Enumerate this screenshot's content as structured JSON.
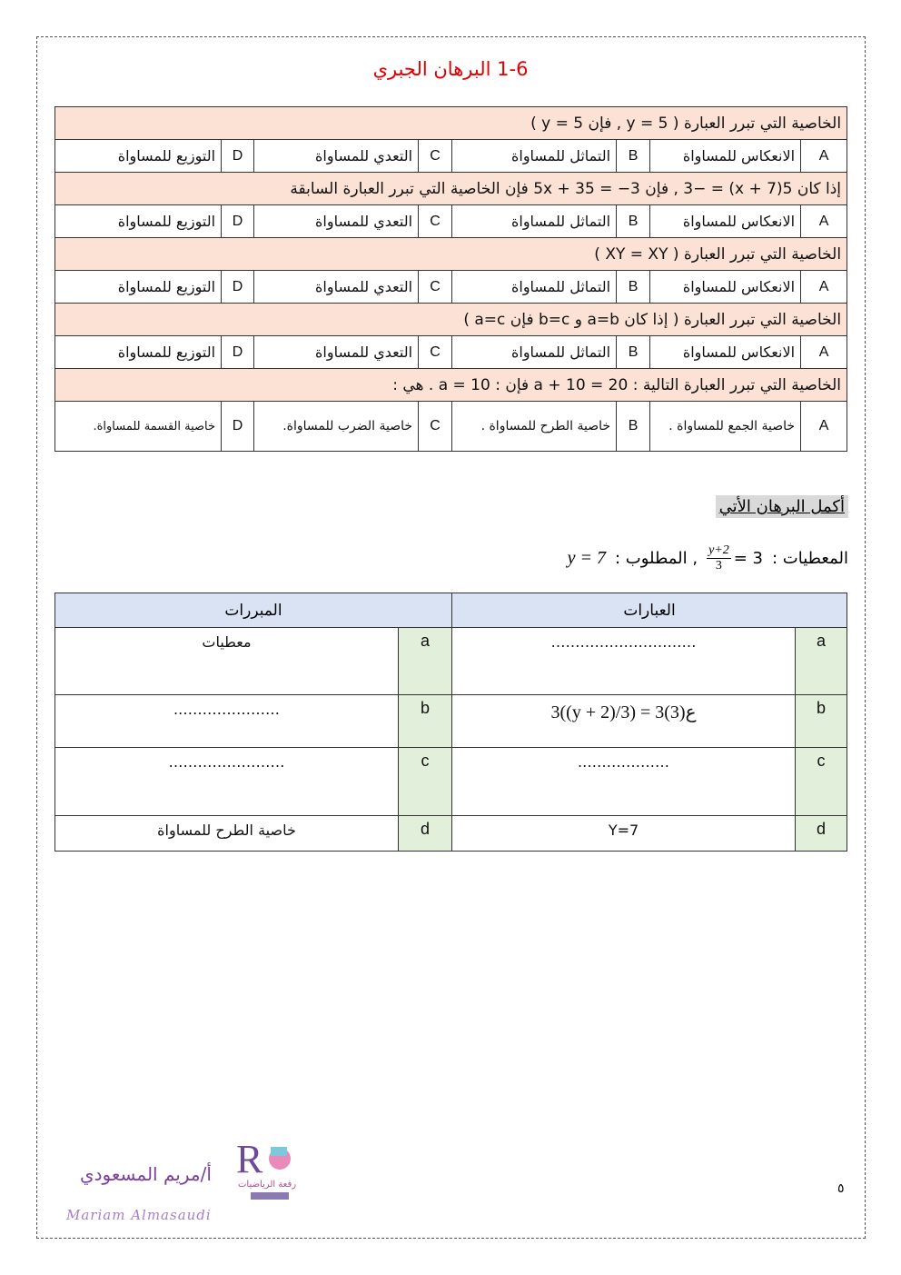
{
  "title": "1-6 البرهان الجبري",
  "mcq": [
    {
      "question": "الخاصية التي تبرر العبارة ( y = 5 , فإن 5 = y )",
      "options": [
        "الانعكاس للمساواة",
        "التماثل للمساواة",
        "التعدي للمساواة",
        "التوزيع للمساواة"
      ]
    },
    {
      "question": "إذا كان 5(x + 7) = −3 , فإن 5x + 35 = −3 فإن الخاصية التي تبرر العبارة السابقة",
      "options": [
        "الانعكاس للمساواة",
        "التماثل للمساواة",
        "التعدي للمساواة",
        "التوزيع للمساواة"
      ]
    },
    {
      "question": "الخاصية التي تبرر العبارة ( XY = XY )",
      "options": [
        "الانعكاس للمساواة",
        "التماثل للمساواة",
        "التعدي للمساواة",
        "التوزيع للمساواة"
      ]
    },
    {
      "question": "الخاصية التي تبرر العبارة ( إذا كان a=b و b=c فإن a=c )",
      "options": [
        "الانعكاس للمساواة",
        "التماثل للمساواة",
        "التعدي للمساواة",
        "التوزيع للمساواة"
      ]
    },
    {
      "question": "الخاصية التي تبرر العبارة التالية : a + 10 = 20 فإن : a = 10 . هي :",
      "options": [
        "خاصية الجمع للمساواة .",
        "خاصية الطرح للمساواة .",
        "خاصية الضرب للمساواة.",
        "خاصية القسمة للمساواة."
      ]
    }
  ],
  "letters": [
    "A",
    "B",
    "C",
    "D"
  ],
  "proof_heading": "أكمل البرهان الأتي",
  "given_label": "المعطيات :",
  "given_num": "y+2",
  "given_den": "3",
  "given_rhs": "= 3",
  "required_label": ", المطلوب :",
  "required_value": "y = 7",
  "proof_table": {
    "headers": {
      "statements": "العبارات",
      "reasons": "المبررات"
    },
    "rows": [
      {
        "letter": "a",
        "statement": "…………………………",
        "reason": "معطيات"
      },
      {
        "letter": "b",
        "statement": "3((y + 2)/3) = 3(3)ع",
        "reason": "…………………."
      },
      {
        "letter": "c",
        "statement": "……………….",
        "reason": "……………………"
      },
      {
        "letter": "d",
        "statement": "Y=7",
        "reason": "خاصية الطرح للمساواة"
      }
    ]
  },
  "page_number": "٥",
  "author_ar": "أ/مريم المسعودي",
  "author_en": "Mariam Almasaudi",
  "logo_text": "مجموعة رفعة الرياضيات"
}
